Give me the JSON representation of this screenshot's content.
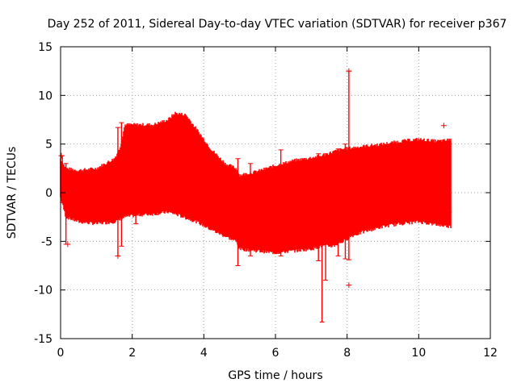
{
  "chart_data": {
    "type": "scatter",
    "title": "Day 252 of 2011, Sidereal Day-to-day VTEC variation (SDTVAR) for receiver p367",
    "xlabel": "GPS time / hours",
    "ylabel": "SDTVAR / TECUs",
    "xlim": [
      0,
      12
    ],
    "ylim": [
      -15,
      15
    ],
    "xticks": [
      0,
      2,
      4,
      6,
      8,
      10,
      12
    ],
    "yticks": [
      -15,
      -10,
      -5,
      0,
      5,
      10,
      15
    ],
    "grid": true,
    "series_color": "#ff0000",
    "marker": "+",
    "envelope": {
      "x": [
        0.0,
        0.15,
        0.5,
        1.0,
        1.5,
        1.65,
        1.8,
        2.2,
        2.6,
        3.0,
        3.2,
        3.5,
        3.8,
        4.2,
        4.6,
        4.9,
        5.0,
        5.5,
        6.0,
        6.5,
        7.0,
        7.3,
        7.6,
        7.9,
        8.1,
        8.5,
        9.0,
        9.5,
        10.0,
        10.5,
        10.9
      ],
      "upper": [
        3.5,
        2.5,
        2.3,
        2.5,
        3.5,
        4.5,
        7.0,
        7.0,
        7.0,
        7.5,
        8.2,
        8.0,
        6.5,
        4.5,
        3.0,
        2.5,
        1.8,
        2.2,
        2.8,
        3.3,
        3.6,
        3.8,
        4.2,
        4.5,
        4.6,
        4.8,
        5.0,
        5.3,
        5.5,
        5.3,
        5.4
      ],
      "lower": [
        -0.5,
        -2.5,
        -3.0,
        -3.2,
        -3.0,
        -2.8,
        -2.5,
        -2.3,
        -2.2,
        -2.0,
        -2.2,
        -2.6,
        -3.0,
        -3.8,
        -4.5,
        -5.0,
        -5.8,
        -6.0,
        -6.2,
        -6.0,
        -5.8,
        -5.5,
        -5.5,
        -5.0,
        -4.5,
        -4.0,
        -3.5,
        -3.2,
        -3.0,
        -3.3,
        -3.5
      ]
    },
    "spikes": [
      {
        "x": 0.05,
        "lo": -1.0,
        "hi": 3.8
      },
      {
        "x": 0.15,
        "lo": -5.3,
        "hi": 3.0
      },
      {
        "x": 1.6,
        "lo": -6.5,
        "hi": 6.7
      },
      {
        "x": 1.7,
        "lo": -5.5,
        "hi": 7.2
      },
      {
        "x": 2.1,
        "lo": -3.2,
        "hi": 5.5
      },
      {
        "x": 4.95,
        "lo": -7.5,
        "hi": 3.5
      },
      {
        "x": 5.3,
        "lo": -6.5,
        "hi": 3.0
      },
      {
        "x": 6.15,
        "lo": -6.5,
        "hi": 4.4
      },
      {
        "x": 7.2,
        "lo": -7.0,
        "hi": 4.0
      },
      {
        "x": 7.3,
        "lo": -13.3,
        "hi": 3.5
      },
      {
        "x": 7.4,
        "lo": -9.0,
        "hi": 4.0
      },
      {
        "x": 7.75,
        "lo": -6.5,
        "hi": 4.5
      },
      {
        "x": 7.95,
        "lo": -6.8,
        "hi": 5.0
      },
      {
        "x": 8.05,
        "lo": -6.9,
        "hi": 12.5
      },
      {
        "x": 10.85,
        "lo": -2.0,
        "hi": 5.5
      }
    ],
    "outliers": [
      {
        "x": 8.05,
        "y": 12.5
      },
      {
        "x": 8.05,
        "y": -9.5
      },
      {
        "x": 10.7,
        "y": 6.9
      },
      {
        "x": 1.6,
        "y": -6.5
      },
      {
        "x": 0.2,
        "y": -5.3
      },
      {
        "x": 0.02,
        "y": 3.8
      }
    ]
  }
}
